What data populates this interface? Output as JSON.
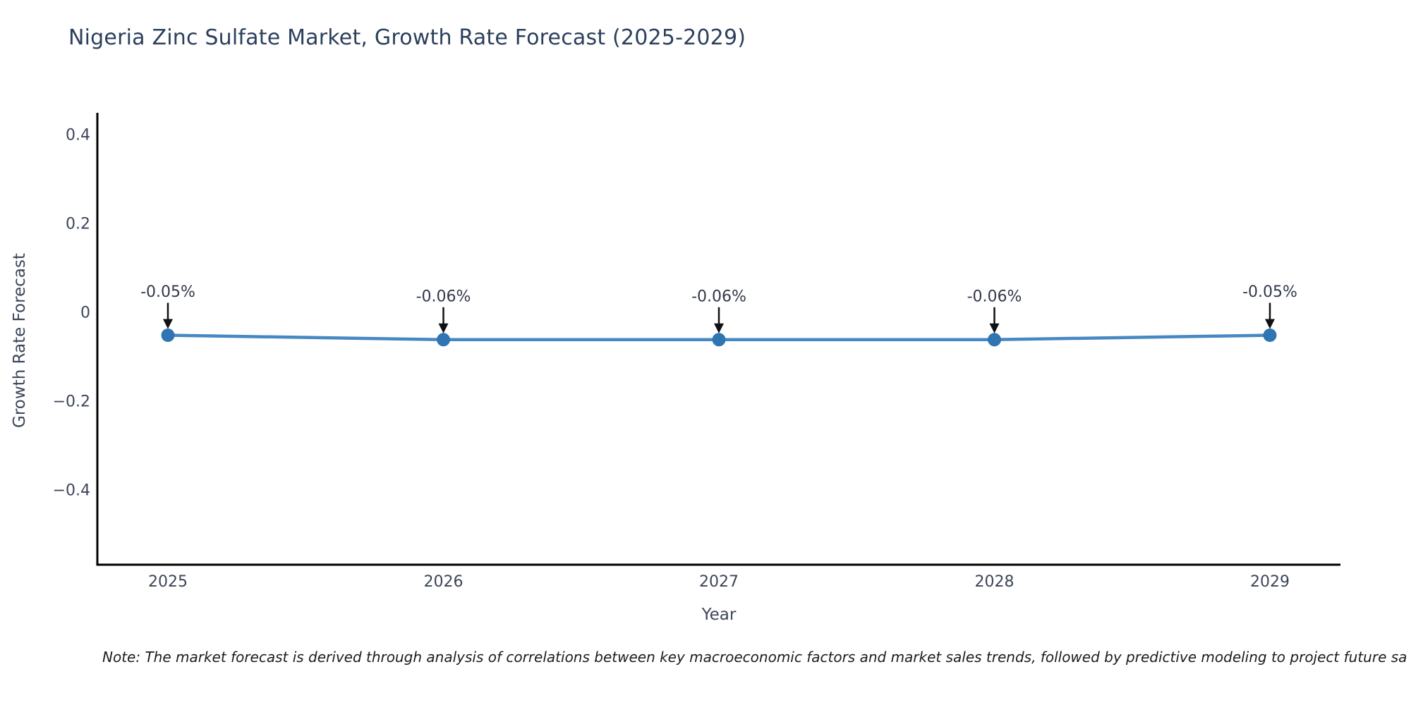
{
  "chart_data": {
    "type": "line",
    "title": "Nigeria Zinc Sulfate Market, Growth Rate Forecast (2025-2029)",
    "xlabel": "Year",
    "ylabel": "Growth Rate Forecast",
    "categories": [
      "2025",
      "2026",
      "2027",
      "2028",
      "2029"
    ],
    "series": [
      {
        "name": "Growth Rate Forecast",
        "values": [
          -0.05,
          -0.06,
          -0.06,
          -0.06,
          -0.05
        ]
      }
    ],
    "point_labels": [
      "-0.05%",
      "-0.06%",
      "-0.06%",
      "-0.06%",
      "-0.05%"
    ],
    "yticks": [
      {
        "value": 0.4,
        "label": "0.4"
      },
      {
        "value": 0.2,
        "label": "0.2"
      },
      {
        "value": 0,
        "label": "0"
      },
      {
        "value": -0.2,
        "label": "−0.2"
      },
      {
        "value": -0.4,
        "label": "−0.4"
      }
    ],
    "ylim": [
      -0.57,
      0.45
    ],
    "grid": false,
    "legend_position": "none",
    "colors": {
      "line": "#4688c3",
      "marker": "#2f74b3",
      "arrow": "#111111",
      "axis": "#000000",
      "tick_text": "#3c4659",
      "title_text": "#2b3f5c",
      "annotation_text": "#33394a"
    }
  },
  "note": {
    "text": "Note: The market forecast is derived through analysis of correlations between key macroeconomic factors and market sales trends, followed by predictive modeling to project future sa"
  }
}
